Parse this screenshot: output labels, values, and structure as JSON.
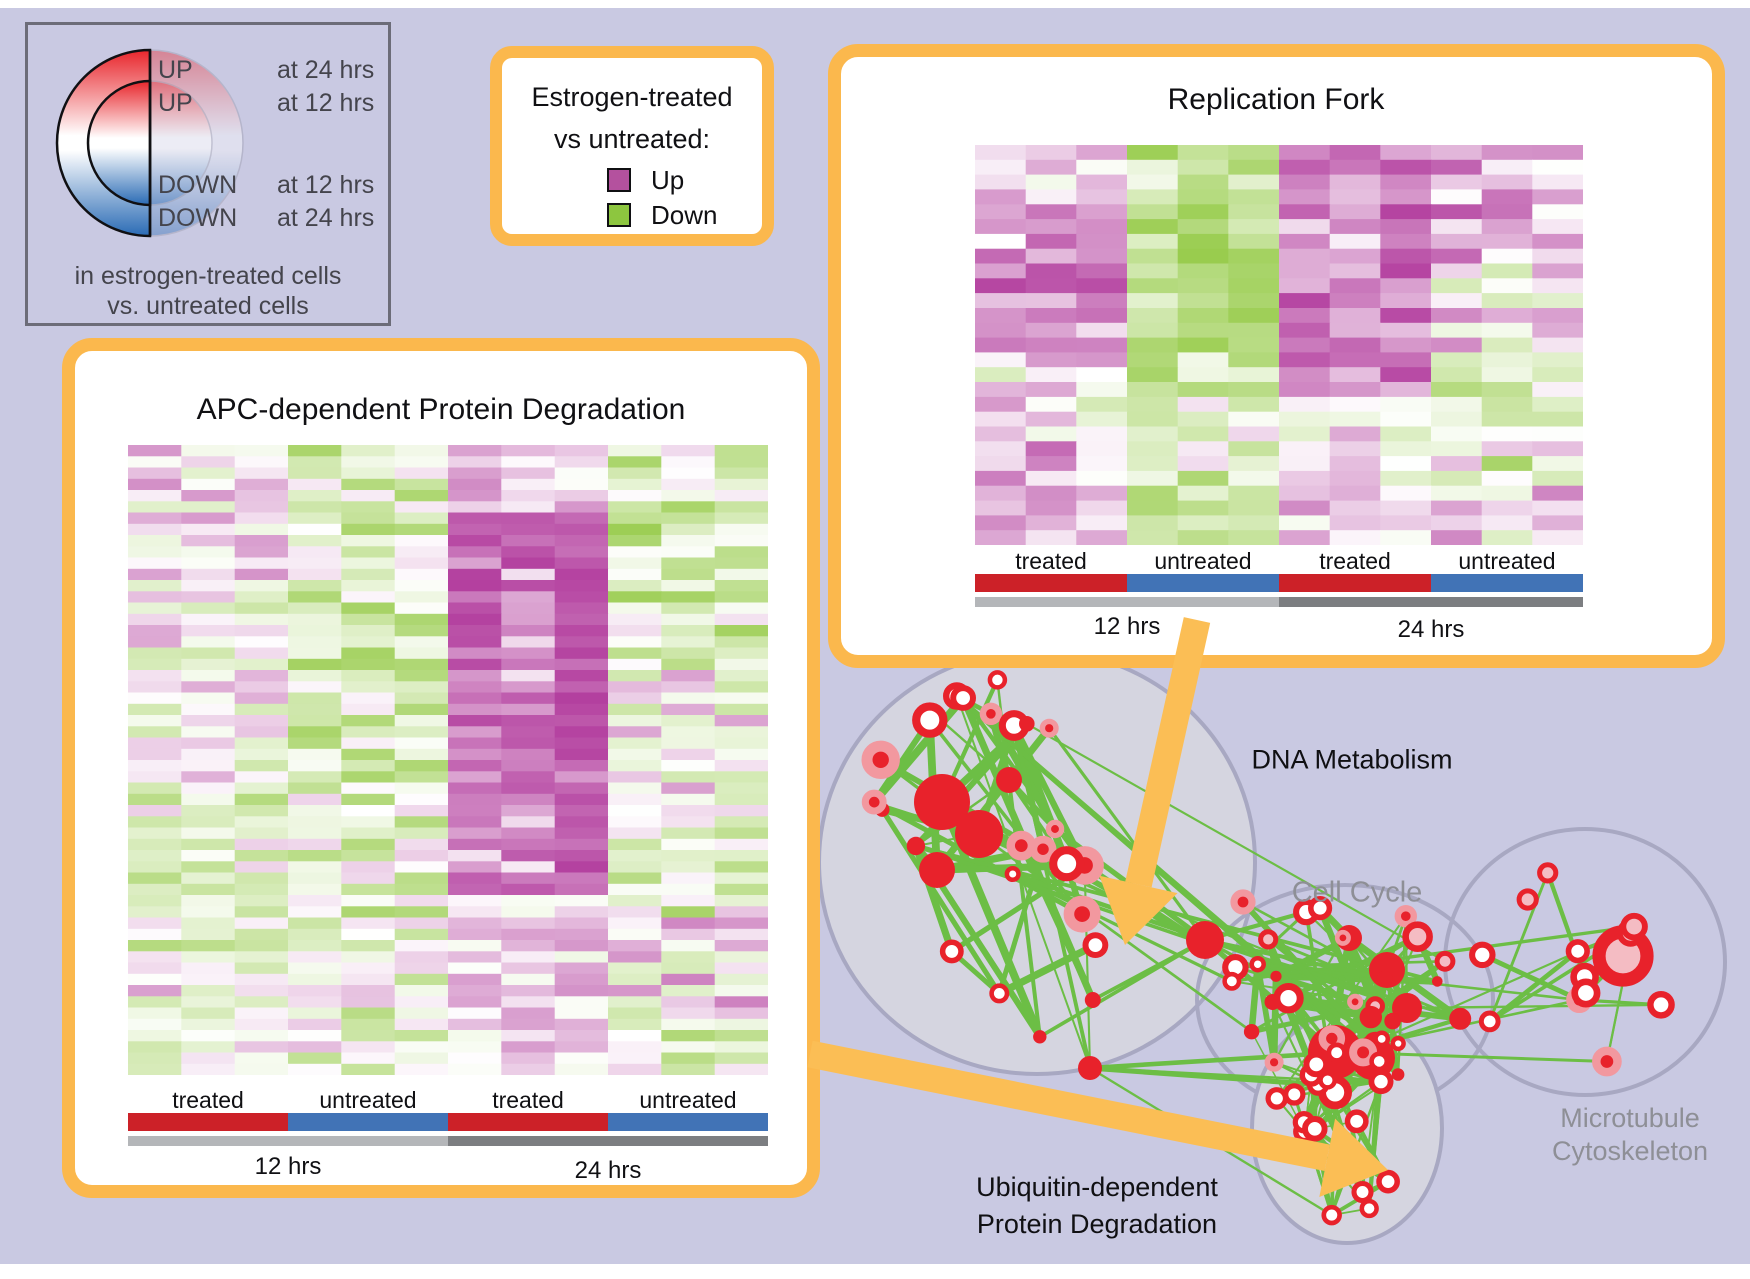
{
  "colors": {
    "background": "#C9C9E2",
    "panel_border": "#FBB84D",
    "arrow": "#FBBE55",
    "panel_bg": "#FFFFFF",
    "heatmap_up": "#B23C9D",
    "heatmap_down": "#86C32D",
    "treated_bar": "#CC2128",
    "untreated_bar": "#4173B6",
    "hrs12_bar": "#B4B6B9",
    "hrs24_bar": "#7C7E81",
    "edge_green": "#6CBE45",
    "node_red": "#E8222B",
    "node_pink": "#F2989F",
    "node_pink_fill": "#F4BCC3",
    "cluster_fill": "#D5D5E0",
    "cluster_stroke": "#A8A8C2",
    "gradient_up": "#E8262C",
    "gradient_down": "#2A6BB5"
  },
  "updown_legend": {
    "rows": [
      {
        "word": "UP",
        "time": "at 24 hrs"
      },
      {
        "word": "UP",
        "time": "at 12 hrs"
      },
      {
        "word": "DOWN",
        "time": "at 12 hrs"
      },
      {
        "word": "DOWN",
        "time": "at 24 hrs"
      }
    ],
    "caption_line1": "in estrogen-treated cells",
    "caption_line2": "vs. untreated cells"
  },
  "color_key": {
    "title_line1": "Estrogen-treated",
    "title_line2": "vs untreated:",
    "items": [
      {
        "label": "Up",
        "color": "#B4519E"
      },
      {
        "label": "Down",
        "color": "#8DC63F"
      }
    ]
  },
  "heatmaps": [
    {
      "id": "replication-fork",
      "title": "Replication Fork",
      "rows": 27,
      "cols": 12,
      "seed": 11,
      "groups": [
        {
          "label": "treated"
        },
        {
          "label": "untreated"
        },
        {
          "label": "treated"
        },
        {
          "label": "untreated"
        }
      ],
      "times": [
        {
          "label": "12 hrs"
        },
        {
          "label": "24 hrs"
        }
      ],
      "bias": [
        [
          [
            0,
            0.1,
            0.12
          ],
          [
            0.1,
            0.3,
            0.35
          ],
          [
            0.3,
            0.55,
            0.55
          ],
          [
            0.55,
            0.75,
            0.1
          ],
          [
            0.75,
            1,
            0.35
          ]
        ],
        [
          [
            0,
            0.62,
            -0.5
          ],
          [
            0.62,
            0.82,
            -0.12
          ],
          [
            0.82,
            1,
            -0.3
          ]
        ],
        [
          [
            0,
            0.62,
            0.62
          ],
          [
            0.62,
            0.85,
            0.12
          ],
          [
            0.85,
            1,
            0.3
          ]
        ],
        [
          [
            0,
            0.3,
            0.42
          ],
          [
            0.3,
            0.55,
            0.15
          ],
          [
            0.55,
            0.82,
            -0.18
          ],
          [
            0.82,
            1,
            0.1
          ]
        ]
      ],
      "noise": [
        0.4,
        0.32,
        0.35,
        0.5
      ]
    },
    {
      "id": "apc",
      "title": "APC-dependent Protein Degradation",
      "rows": 56,
      "cols": 12,
      "seed": 4,
      "groups": [
        {
          "label": "treated"
        },
        {
          "label": "untreated"
        },
        {
          "label": "treated"
        },
        {
          "label": "untreated"
        }
      ],
      "times": [
        {
          "label": "12 hrs"
        },
        {
          "label": "24 hrs"
        }
      ],
      "bias": [
        [
          [
            0,
            0.25,
            0.15
          ],
          [
            0.25,
            0.55,
            0.02
          ],
          [
            0.55,
            0.85,
            -0.18
          ],
          [
            0.85,
            1,
            0.05
          ]
        ],
        [
          [
            0,
            0.55,
            -0.3
          ],
          [
            0.55,
            0.85,
            -0.22
          ],
          [
            0.85,
            1,
            -0.12
          ]
        ],
        [
          [
            0,
            0.1,
            0.28
          ],
          [
            0.1,
            0.72,
            0.68
          ],
          [
            0.72,
            1,
            0.2
          ]
        ],
        [
          [
            0,
            0.35,
            -0.32
          ],
          [
            0.35,
            0.55,
            0.08
          ],
          [
            0.55,
            0.75,
            -0.2
          ],
          [
            0.75,
            0.9,
            0.12
          ],
          [
            0.9,
            1,
            -0.15
          ]
        ]
      ],
      "noise": [
        0.38,
        0.42,
        0.3,
        0.48
      ]
    }
  ],
  "network": {
    "labels": {
      "dna": "DNA Metabolism",
      "cell_cycle": "Cell Cycle",
      "microtubule_1": "Microtubule",
      "microtubule_2": "Cytoskeleton",
      "ubiquitin_1": "Ubiquitin-dependent",
      "ubiquitin_2": "Protein Degradation"
    },
    "clusters": [
      {
        "id": "dna",
        "filled": true,
        "seed": 7,
        "nodes": 26,
        "sizes": [
          5,
          14
        ],
        "styles": [
          [
            "solid",
            0.3
          ],
          [
            "halo",
            0.45
          ],
          [
            "wring",
            0.25
          ]
        ],
        "edges": 58,
        "edge_width": [
          2,
          8
        ],
        "big": [
          [
            -95,
            -60,
            28,
            "solid"
          ],
          [
            -58,
            -28,
            24,
            "solid"
          ],
          [
            -100,
            8,
            18,
            "solid"
          ],
          [
            -28,
            -82,
            13,
            "solid"
          ]
        ]
      },
      {
        "id": "cc",
        "filled": false,
        "seed": 13,
        "nodes": 30,
        "sizes": [
          5,
          13
        ],
        "styles": [
          [
            "solid",
            0.28
          ],
          [
            "halo",
            0.27
          ],
          [
            "wring",
            0.28
          ],
          [
            "pring",
            0.17
          ]
        ],
        "edges": 85,
        "edge_width": [
          2,
          7
        ],
        "big": [
          [
            -10,
            52,
            27,
            "solid"
          ],
          [
            28,
            58,
            22,
            "solid"
          ],
          [
            42,
            -30,
            18,
            "solid"
          ],
          [
            4,
            -62,
            13,
            "solid"
          ],
          [
            62,
            8,
            15,
            "solid"
          ]
        ]
      },
      {
        "id": "mt",
        "filled": false,
        "seed": 5,
        "nodes": 12,
        "sizes": [
          7,
          12
        ],
        "styles": [
          [
            "wring",
            0.6
          ],
          [
            "pring",
            0.25
          ],
          [
            "halo",
            0.15
          ]
        ],
        "edges": 15,
        "edge_width": [
          2,
          5
        ],
        "big": [
          [
            38,
            -6,
            24,
            "pring"
          ]
        ]
      },
      {
        "id": "ub",
        "filled": true,
        "seed": 9,
        "nodes": 17,
        "sizes": [
          7,
          10
        ],
        "styles": [
          [
            "wring",
            1
          ]
        ],
        "edges": 90,
        "edge_width": [
          1.5,
          4
        ],
        "big": []
      }
    ],
    "bridges": [
      [
        "dna",
        "cc",
        8,
        [
          2,
          5
        ]
      ],
      [
        "cc",
        "mt",
        6,
        [
          2,
          4
        ]
      ],
      [
        "cc",
        "ub",
        12,
        [
          1.5,
          3
        ]
      ]
    ],
    "extra_nodes": [
      [
        1205,
        940,
        19,
        "solid"
      ],
      [
        1090,
        1068,
        12,
        "solid"
      ],
      [
        1243,
        902,
        9,
        "halo"
      ]
    ],
    "extra_links": [
      [
        0,
        "dna",
        5
      ],
      [
        0,
        "cc",
        5
      ],
      [
        1,
        "dna",
        3
      ],
      [
        1,
        "ub",
        4
      ],
      [
        2,
        "cc",
        3
      ]
    ]
  }
}
